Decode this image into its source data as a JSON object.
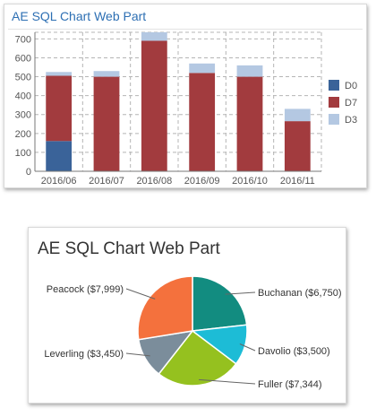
{
  "bar_panel": {
    "title": "AE SQL Chart Web Part"
  },
  "pie_panel": {
    "title": "AE SQL Chart Web Part"
  },
  "chart_data": [
    {
      "type": "bar",
      "stacked": true,
      "categories": [
        "2016/06",
        "2016/07",
        "2016/08",
        "2016/09",
        "2016/10",
        "2016/11"
      ],
      "series": [
        {
          "name": "D0",
          "color": "#3a6399",
          "values": [
            160,
            0,
            0,
            0,
            0,
            0
          ]
        },
        {
          "name": "D7",
          "color": "#a23b3e",
          "values": [
            345,
            500,
            690,
            520,
            500,
            265
          ]
        },
        {
          "name": "D3",
          "color": "#b4c8e2",
          "values": [
            20,
            30,
            45,
            50,
            60,
            65
          ]
        }
      ],
      "y_ticks": [
        0,
        100,
        200,
        300,
        400,
        500,
        600,
        700
      ],
      "ylim": [
        0,
        735
      ],
      "grid": true,
      "legend": "right"
    },
    {
      "type": "pie",
      "slices": [
        {
          "label": "Buchanan ($6,750)",
          "value": 6750,
          "color": "#128c80"
        },
        {
          "label": "Davolio ($3,500)",
          "value": 3500,
          "color": "#1dbcd6"
        },
        {
          "label": "Fuller ($7,344)",
          "value": 7344,
          "color": "#95c11f"
        },
        {
          "label": "Leverling ($3,450)",
          "value": 3450,
          "color": "#7b8d9b"
        },
        {
          "label": "Peacock ($7,999)",
          "value": 7999,
          "color": "#f4713d"
        }
      ],
      "start_angle_deg": 0,
      "direction": "clockwise"
    }
  ]
}
